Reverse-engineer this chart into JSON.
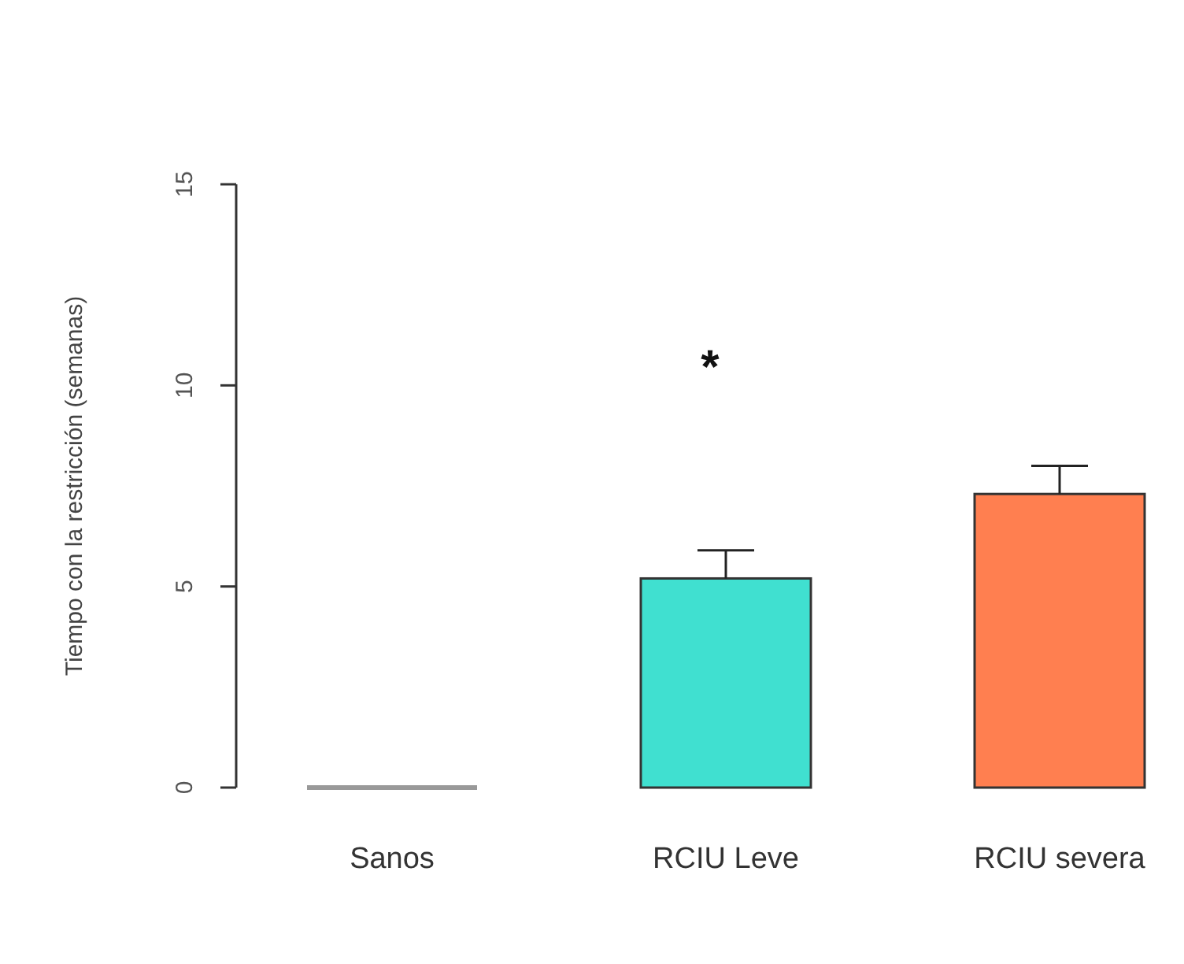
{
  "chart_data": {
    "type": "bar",
    "ylabel": "Tiempo con la restricción (semanas)",
    "categories": [
      "Sanos",
      "RCIU Leve",
      "RCIU severa"
    ],
    "values": [
      0,
      5.2,
      7.3
    ],
    "colors": [
      "#999999",
      "#40e0d0",
      "#ff7f50"
    ],
    "errors": [
      null,
      0.7,
      0.7
    ],
    "ylim": [
      0,
      15
    ],
    "yticks": [
      0,
      5,
      10,
      15
    ],
    "annotations": [
      "*"
    ],
    "grid": false
  }
}
